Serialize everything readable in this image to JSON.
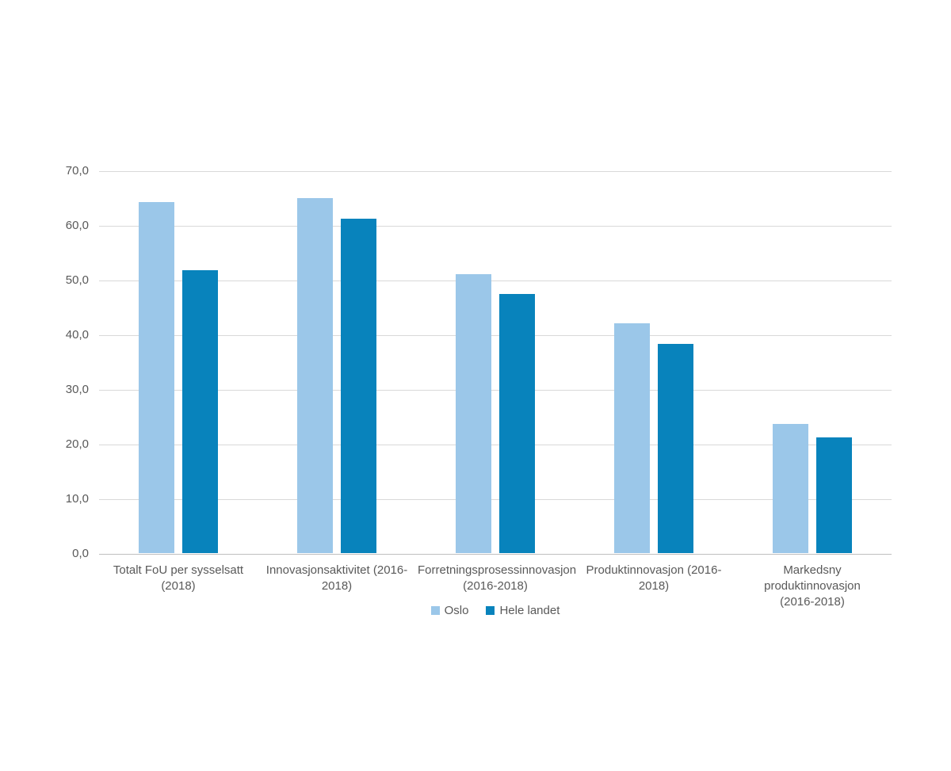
{
  "chart_data": {
    "type": "bar",
    "title": "",
    "categories": [
      "Totalt FoU per sysselsatt (2018)",
      "Innovasjonsaktivitet (2016-2018)",
      "Forretningsprosessinnovasjon (2016-2018)",
      "Produktinnovasjon (2016-2018)",
      "Markedsny produktinnovasjon (2016-2018)"
    ],
    "category_labels_two_line": [
      [
        "Totalt FoU per sysselsatt",
        "(2018)"
      ],
      [
        "Innovasjonsaktivitet (2016-",
        "2018)"
      ],
      [
        "Forretningsprosessinnovasjon",
        "(2016-2018)"
      ],
      [
        "Produktinnovasjon (2016-",
        "2018)"
      ],
      [
        "Markedsny produktinnovasjon",
        "(2016-2018)"
      ]
    ],
    "series": [
      {
        "name": "Oslo",
        "color": "#9BC7E9",
        "values": [
          64.2,
          65.0,
          51.0,
          42.0,
          23.6
        ]
      },
      {
        "name": "Hele landet",
        "color": "#0883BC",
        "values": [
          51.8,
          61.1,
          47.4,
          38.2,
          21.1
        ]
      }
    ],
    "xlabel": "",
    "ylabel": "",
    "ylim": [
      0,
      70
    ],
    "ytick_step": 10,
    "ytick_labels": [
      "70,0",
      "60,0",
      "50,0",
      "40,0",
      "30,0",
      "20,0",
      "10,0",
      "0,0"
    ],
    "grid": true,
    "gridline_color": "#d9d9d9",
    "axis_text_color": "#595959",
    "legend_position": "bottom",
    "decimal_separator": ","
  }
}
